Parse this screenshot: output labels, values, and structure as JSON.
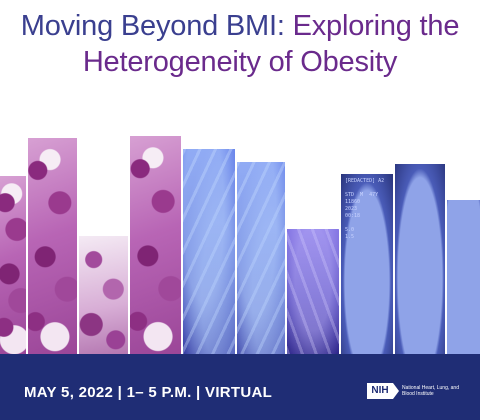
{
  "title": {
    "line1_part1": "Moving Beyond BMI: ",
    "line1_part2": "Exploring the",
    "line2": "Heterogeneity of Obesity"
  },
  "ct_scan": {
    "overlay_text": "[REDACTED] A2\n\nSTD  M  47Y\n11860\n2023\n00:18\n\n5.0\n1.5"
  },
  "footer": {
    "event_info": "MAY 5, 2022 | 1– 5 P.M. | VIRTUAL",
    "logo_abbr": "NIH",
    "logo_name": "National Heart, Lung, and Blood Institute"
  },
  "colors": {
    "title_blue": "#3a3f8f",
    "title_purple": "#6a2a8c",
    "footer_bg": "#1f2d75"
  }
}
